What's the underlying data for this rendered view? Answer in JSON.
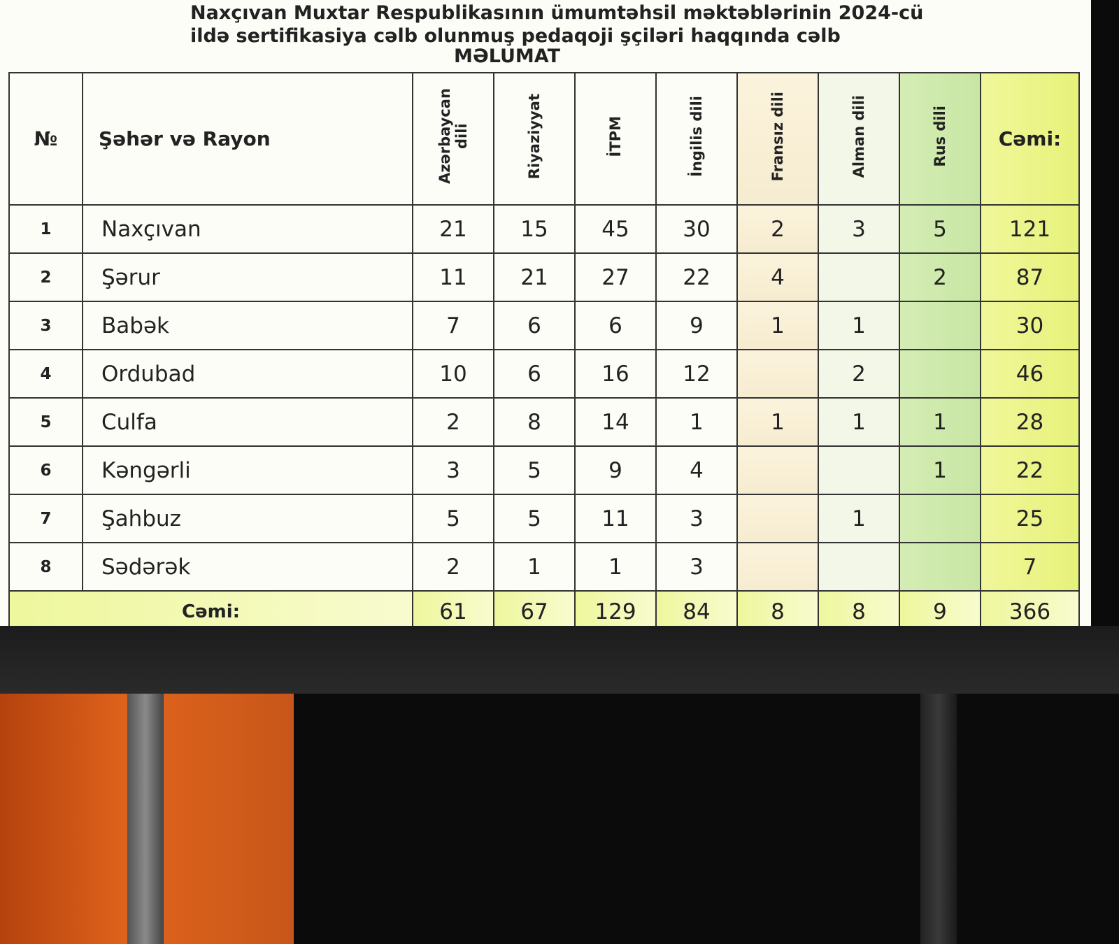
{
  "header": {
    "title": [
      "Naxçıvan Muxtar Respublikasının ümumtəhsil məktəblərinin 2024-cü",
      "ildə sertifikasiya cəlb olunmuş pedaqoji şçiləri haqqında cəlb",
      "MƏLUMAT"
    ]
  },
  "table": {
    "columns": [
      "№",
      "Şəhər və Rayon",
      "Azərbaycan dili",
      "Riyaziyyat",
      "İTPM",
      "İngilis dili",
      "Fransız dili",
      "Alman dili",
      "Rus dili",
      "Cəmi:"
    ],
    "rows": [
      {
        "no": 1,
        "name": "Naxçıvan",
        "values": [
          21,
          15,
          45,
          30,
          2,
          3,
          5
        ],
        "total": 121
      },
      {
        "no": 2,
        "name": "Şərur",
        "values": [
          11,
          21,
          27,
          22,
          4,
          null,
          2
        ],
        "total": 87
      },
      {
        "no": 3,
        "name": "Babək",
        "values": [
          7,
          6,
          6,
          9,
          1,
          1,
          null
        ],
        "total": 30
      },
      {
        "no": 4,
        "name": "Ordubad",
        "values": [
          10,
          6,
          16,
          12,
          null,
          2,
          null
        ],
        "total": 46
      },
      {
        "no": 5,
        "name": "Culfa",
        "values": [
          2,
          8,
          14,
          1,
          1,
          1,
          1
        ],
        "total": 28
      },
      {
        "no": 6,
        "name": "Kəngərli",
        "values": [
          3,
          5,
          9,
          4,
          null,
          null,
          1
        ],
        "total": 22
      },
      {
        "no": 7,
        "name": "Şahbuz",
        "values": [
          5,
          5,
          11,
          3,
          null,
          1,
          null
        ],
        "total": 25
      },
      {
        "no": 8,
        "name": "Sədərək",
        "values": [
          2,
          1,
          1,
          3,
          null,
          null,
          null
        ],
        "total": 7
      }
    ],
    "total_row": {
      "label": "Cəmi:",
      "values": [
        61,
        67,
        129,
        84,
        8,
        8,
        9
      ],
      "total": 366
    }
  }
}
